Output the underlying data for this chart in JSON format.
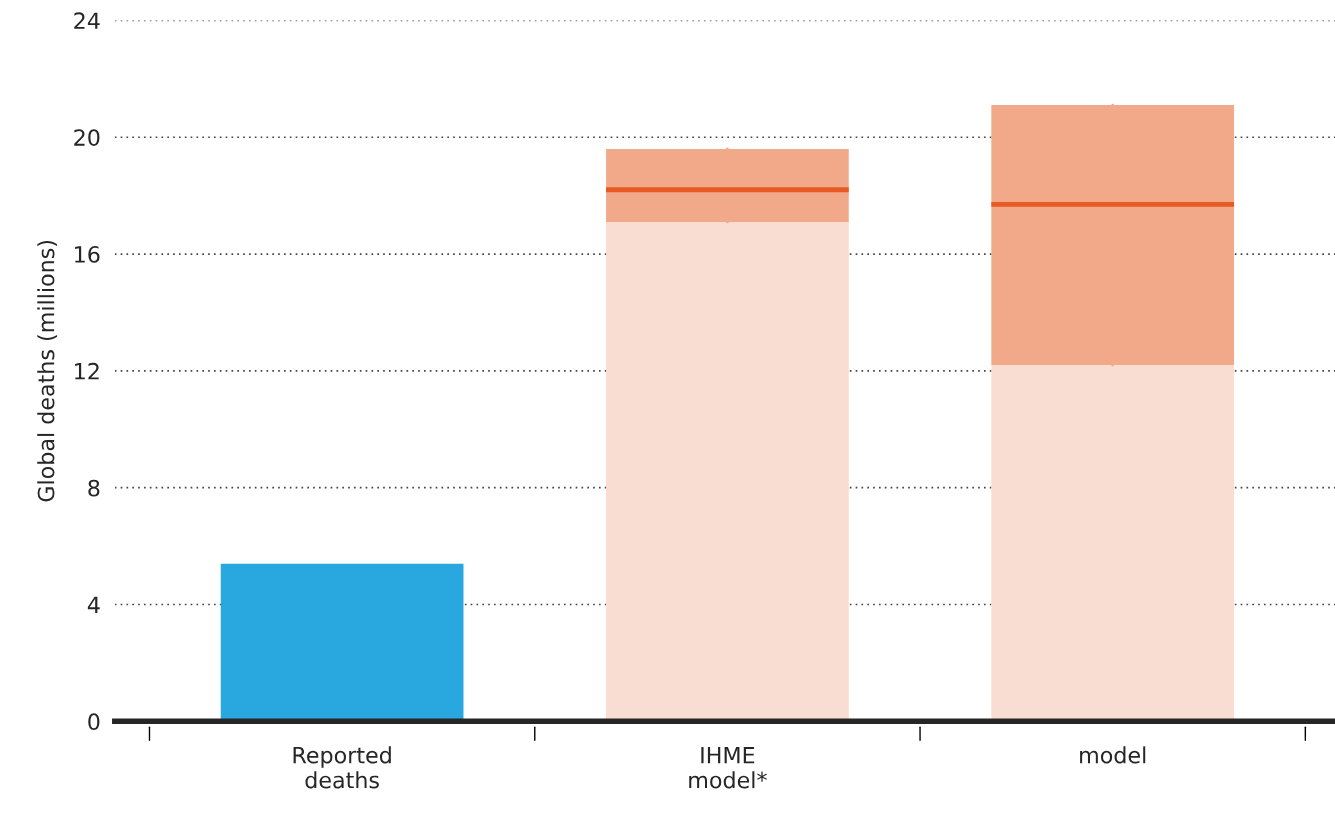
{
  "chart_data": {
    "type": "bar",
    "ylabel": "Global deaths (millions)",
    "categories": [
      "Reported\ndeaths",
      "IHME\nmodel*",
      "model"
    ],
    "series": [
      {
        "color": "#29a8e0",
        "values": [
          5.4,
          null,
          null
        ]
      },
      {
        "color": "#f9ddd3",
        "values": [
          null,
          17.1,
          12.2
        ]
      },
      {
        "type": "box",
        "color": "#e55a25",
        "colors": [
          null,
          "#f2a98a",
          "#f2a98a"
        ],
        "boxes": [
          null,
          {
            "low": 17.1,
            "q1": 17.1,
            "median": 18.2,
            "q3": 19.6,
            "high": 19.6
          },
          {
            "low": 12.2,
            "q1": 12.2,
            "median": 17.7,
            "q3": 21.1,
            "high": 21.1
          }
        ]
      }
    ],
    "ylim": [
      0,
      24
    ],
    "yticks": [
      0,
      4,
      8,
      12,
      16,
      20,
      24
    ],
    "grid": "y"
  }
}
